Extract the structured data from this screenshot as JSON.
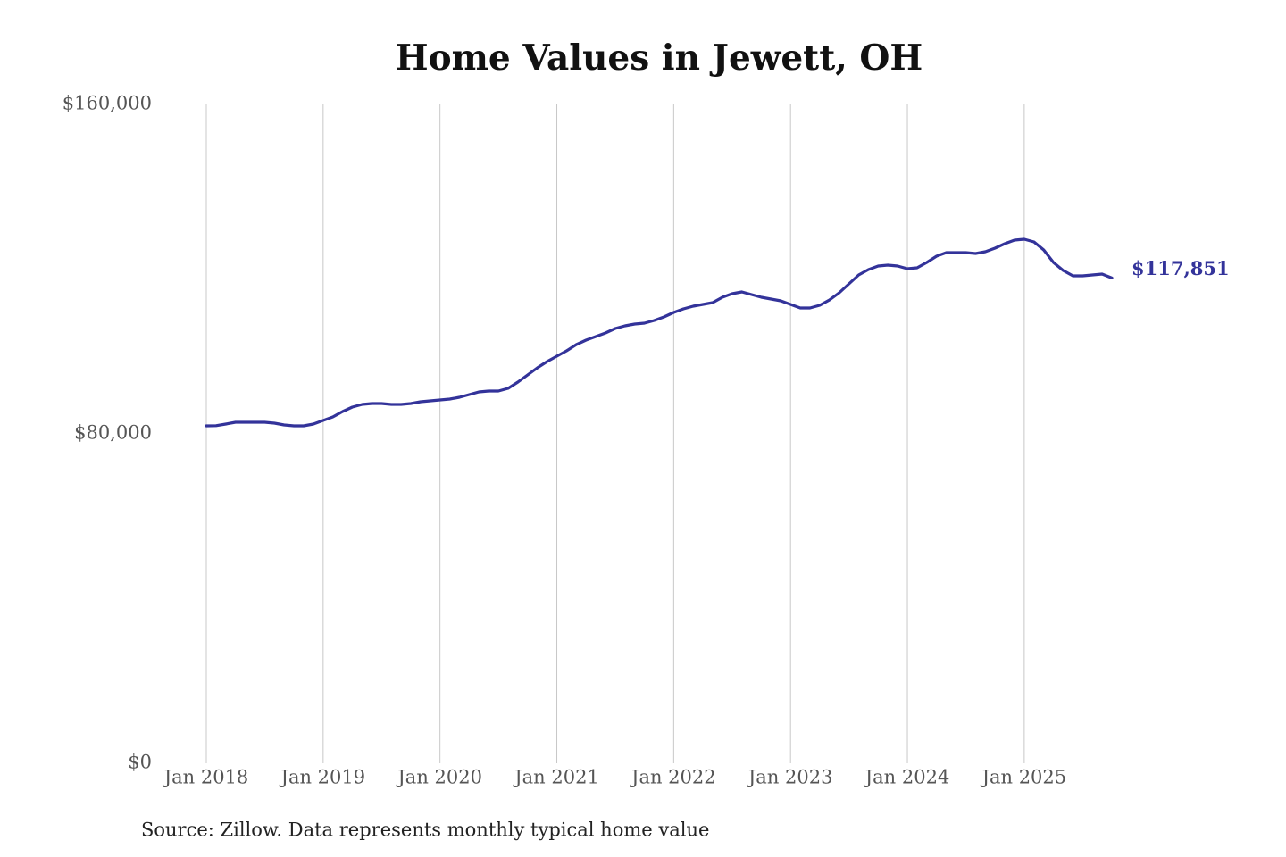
{
  "chart_data": {
    "type": "line",
    "title": "Home Values in Jewett, OH",
    "source": "Source: Zillow. Data represents monthly typical home value",
    "annotation": "$117,851",
    "x": [
      "2018-01",
      "2018-02",
      "2018-03",
      "2018-04",
      "2018-05",
      "2018-06",
      "2018-07",
      "2018-08",
      "2018-09",
      "2018-10",
      "2018-11",
      "2018-12",
      "2019-01",
      "2019-02",
      "2019-03",
      "2019-04",
      "2019-05",
      "2019-06",
      "2019-07",
      "2019-08",
      "2019-09",
      "2019-10",
      "2019-11",
      "2019-12",
      "2020-01",
      "2020-02",
      "2020-03",
      "2020-04",
      "2020-05",
      "2020-06",
      "2020-07",
      "2020-08",
      "2020-09",
      "2020-10",
      "2020-11",
      "2020-12",
      "2021-01",
      "2021-02",
      "2021-03",
      "2021-04",
      "2021-05",
      "2021-06",
      "2021-07",
      "2021-08",
      "2021-09",
      "2021-10",
      "2021-11",
      "2021-12",
      "2022-01",
      "2022-02",
      "2022-03",
      "2022-04",
      "2022-05",
      "2022-06",
      "2022-07",
      "2022-08",
      "2022-09",
      "2022-10",
      "2022-11",
      "2022-12",
      "2023-01",
      "2023-02",
      "2023-03",
      "2023-04",
      "2023-05",
      "2023-06",
      "2023-07",
      "2023-08",
      "2023-09",
      "2023-10",
      "2023-11",
      "2023-12",
      "2024-01",
      "2024-02",
      "2024-03",
      "2024-04",
      "2024-05",
      "2024-06",
      "2024-07",
      "2024-08",
      "2024-09",
      "2024-10",
      "2024-11",
      "2024-12",
      "2025-01",
      "2025-02",
      "2025-03",
      "2025-04",
      "2025-05",
      "2025-06",
      "2025-07",
      "2025-08",
      "2025-09",
      "2025-10"
    ],
    "series": [
      {
        "name": "Typical home value",
        "color": "#33339a",
        "values": [
          81950,
          82000,
          82380,
          82820,
          82820,
          82820,
          82820,
          82600,
          82170,
          81950,
          81950,
          82380,
          83250,
          84120,
          85420,
          86500,
          87150,
          87370,
          87370,
          87150,
          87150,
          87370,
          87800,
          88020,
          88240,
          88450,
          88890,
          89540,
          90190,
          90400,
          90400,
          91060,
          92570,
          94310,
          96040,
          97560,
          98860,
          100160,
          101680,
          102760,
          103630,
          104500,
          105580,
          106230,
          106670,
          106880,
          107530,
          108400,
          109480,
          110350,
          111000,
          111440,
          111870,
          113170,
          114040,
          114470,
          113820,
          113170,
          112740,
          112300,
          111440,
          110570,
          110570,
          111220,
          112520,
          114250,
          116420,
          118590,
          119890,
          120760,
          120980,
          120760,
          120110,
          120330,
          121630,
          123140,
          124010,
          124010,
          124010,
          123790,
          124230,
          125090,
          126180,
          127040,
          127260,
          126610,
          124660,
          121630,
          119670,
          118370,
          118370,
          118590,
          118800,
          117851
        ]
      }
    ],
    "xlim": [
      "2018-01",
      "2025-10"
    ],
    "xticks": [
      {
        "value": "2018-01",
        "label": "Jan 2018"
      },
      {
        "value": "2019-01",
        "label": "Jan 2019"
      },
      {
        "value": "2020-01",
        "label": "Jan 2020"
      },
      {
        "value": "2021-01",
        "label": "Jan 2021"
      },
      {
        "value": "2022-01",
        "label": "Jan 2022"
      },
      {
        "value": "2023-01",
        "label": "Jan 2023"
      },
      {
        "value": "2024-01",
        "label": "Jan 2024"
      },
      {
        "value": "2025-01",
        "label": "Jan 2025"
      }
    ],
    "ylim": [
      0,
      160000
    ],
    "yticks": [
      {
        "value": 0,
        "label": "$0"
      },
      {
        "value": 80000,
        "label": "$80,000"
      },
      {
        "value": 160000,
        "label": "$160,000"
      }
    ],
    "grid": "x"
  }
}
